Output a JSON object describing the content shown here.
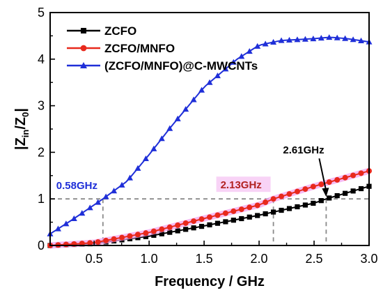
{
  "chart_data": {
    "type": "line",
    "xlabel": "Frequency / GHz",
    "ylabel_parts": [
      "|Z",
      "in",
      "/Z",
      "0",
      "|"
    ],
    "xlim": [
      0.1,
      3.0
    ],
    "ylim": [
      0,
      5
    ],
    "x_ticks": [
      "0.5",
      "1.0",
      "1.5",
      "2.0",
      "2.5",
      "3.0"
    ],
    "y_ticks": [
      "0",
      "1",
      "2",
      "3",
      "4",
      "5"
    ],
    "legend_position": "top-left",
    "grid": false,
    "series": [
      {
        "name": "ZCFO",
        "color": "#000000",
        "marker": "square",
        "x": [
          0.1,
          0.5,
          1.0,
          1.5,
          2.0,
          2.5,
          2.61,
          3.0
        ],
        "y": [
          0.0,
          0.04,
          0.2,
          0.42,
          0.65,
          0.91,
          1.0,
          1.27
        ]
      },
      {
        "name": "ZCFO/MNFO",
        "color": "#e8291c",
        "marker": "circle",
        "x": [
          0.1,
          0.5,
          1.0,
          1.5,
          2.0,
          2.13,
          2.5,
          3.0
        ],
        "y": [
          0.0,
          0.06,
          0.28,
          0.58,
          0.87,
          1.0,
          1.27,
          1.6
        ]
      },
      {
        "name": "(ZCFO/MNFO)@C-MWCNTs",
        "color": "#1f2fd8",
        "marker": "triangle",
        "x": [
          0.1,
          0.3,
          0.58,
          0.8,
          1.0,
          1.2,
          1.5,
          1.8,
          2.0,
          2.2,
          2.5,
          2.65,
          2.8,
          3.0
        ],
        "y": [
          0.25,
          0.55,
          1.0,
          1.38,
          1.95,
          2.55,
          3.4,
          4.0,
          4.3,
          4.4,
          4.44,
          4.47,
          4.44,
          4.37
        ]
      }
    ],
    "reference_line": {
      "y": 1.0
    },
    "annotations": [
      {
        "text": "0.58GHz",
        "x": 0.58,
        "color": "#1f2fd8"
      },
      {
        "text": "2.13GHz",
        "x": 2.13,
        "color": "#b22222"
      },
      {
        "text": "2.61GHz",
        "x": 2.61,
        "color": "#000000"
      }
    ]
  }
}
